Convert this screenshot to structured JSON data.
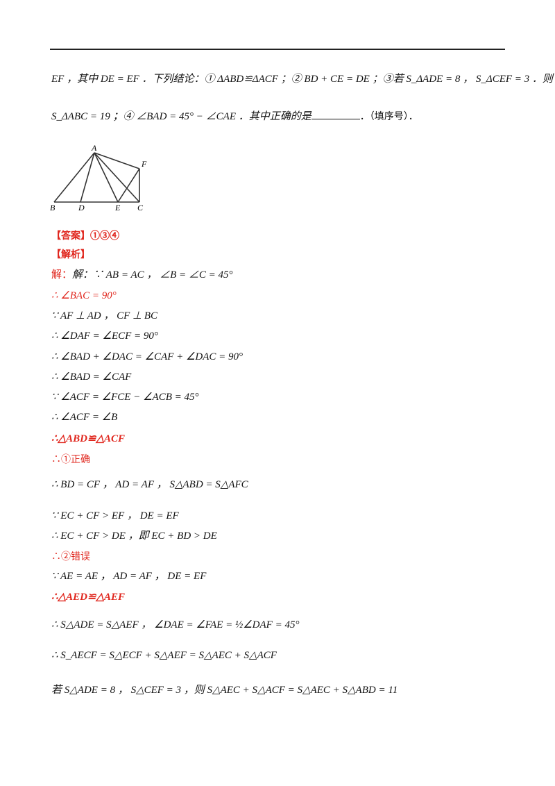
{
  "problem": {
    "line1": "EF ，其中 DE = EF ．下列结论：① ΔABD≌ΔACF ；② BD + CE = DE ；③若 S_ΔADE = 8 ， S_ΔCEF = 3 ．则",
    "line2a": "S_ΔABC = 19 ；④ ∠BAD = 45° − ∠CAE ．其中正确的是",
    "line2b": "．（填序号）．"
  },
  "figure": {
    "labels": {
      "A": "A",
      "B": "B",
      "C": "C",
      "D": "D",
      "E": "E",
      "F": "F"
    }
  },
  "answer": {
    "tag": "【答案】",
    "value": "①③④"
  },
  "analysis": {
    "tag": "【解析】"
  },
  "solution": [
    {
      "text": "解：∵ AB = AC ， ∠B = ∠C = 45°",
      "color": "mixed"
    },
    {
      "text": "∴ ∠BAC = 90°"
    },
    {
      "text": "∵ AF ⊥ AD ， CF ⊥ BC"
    },
    {
      "text": "∴ ∠DAF = ∠ECF = 90°"
    },
    {
      "text": "∴ ∠BAD + ∠DAC = ∠CAF + ∠DAC = 90°"
    },
    {
      "text": "∴ ∠BAD = ∠CAF"
    },
    {
      "text": "∵ ∠ACF = ∠FCE − ∠ACB = 45°"
    },
    {
      "text": "∴ ∠ACF = ∠B"
    },
    {
      "text": "∴△ABD≌△ACF"
    },
    {
      "text": "∴①正确"
    },
    {
      "text": "∴ BD = CF ， AD = AF ， S△ABD = S△AFC"
    },
    {
      "text": "∵ EC + CF > EF ， DE = EF"
    },
    {
      "text": "∴ EC + CF > DE ，即 EC + BD > DE"
    },
    {
      "text": "∴②错误"
    },
    {
      "text": "∵ AE = AE ， AD = AF ， DE = EF"
    },
    {
      "text": "∴△AED≌△AEF"
    },
    {
      "text": "∴ S△ADE = S△AEF ， ∠DAE = ∠FAE = ½∠DAF = 45°"
    },
    {
      "text": "∴ S_AECF = S△ECF + S△AEF = S△AEC + S△ACF"
    },
    {
      "text": "若 S△ADE = 8 ， S△CEF = 3 ，则 S△AEC + S△ACF = S△AEC + S△ABD = 11"
    }
  ]
}
